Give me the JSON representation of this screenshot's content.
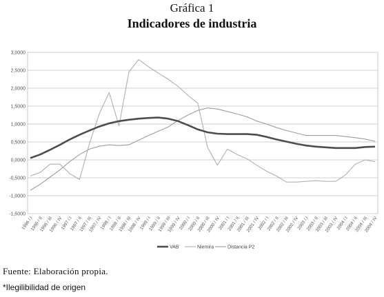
{
  "header": {
    "chart_number": "Gráfica 1",
    "title": "Indicadores de industria"
  },
  "footer": {
    "source": "Fuente: Elaboración propia.",
    "note": "*Ilegilibilidad de origen"
  },
  "chart_data": {
    "type": "line",
    "title": "Indicadores de industria",
    "xlabel": "",
    "ylabel": "",
    "ylim": [
      -1.5,
      3.0
    ],
    "yticks": [
      3.0,
      2.5,
      2.0,
      1.5,
      1.0,
      0.5,
      0.0,
      -0.5,
      -1.0,
      -1.5
    ],
    "ytick_labels": [
      "3,0000",
      "2,5000",
      "2,0000",
      "1,5000",
      "1,0000",
      "0,5000",
      "0,0000",
      "-0,5000",
      "-1,0000",
      "-1,5000"
    ],
    "grid": true,
    "legend_position": "bottom",
    "categories": [
      "1996 / I",
      "1996 / II",
      "1996 / III",
      "1996 / IV",
      "1997 / I",
      "1997 / II",
      "1997 / III",
      "1997 / IV",
      "1998 / I",
      "1998 / II",
      "1998 / III",
      "1998 / IV",
      "1999 / I",
      "1999 / II",
      "1999 / III",
      "1999 / IV",
      "2000 / I",
      "2000 / II",
      "2000 / III",
      "2000 / IV",
      "2001 / I",
      "2001 / II",
      "2001 / III",
      "2001 / IV",
      "2002 / I",
      "2002 / II",
      "2002 / III",
      "2002 / IV",
      "2003 / I",
      "2003 / II",
      "2003 / III",
      "2003 / IV",
      "2004 / I",
      "2004 / II",
      "2004 / III",
      "2004 / IV"
    ],
    "series": [
      {
        "name": "VAB",
        "color": "#4d4d4d",
        "width": 2.6,
        "values": [
          0.05,
          0.15,
          0.28,
          0.42,
          0.57,
          0.7,
          0.82,
          0.93,
          1.02,
          1.08,
          1.12,
          1.15,
          1.17,
          1.18,
          1.15,
          1.08,
          0.97,
          0.85,
          0.77,
          0.73,
          0.72,
          0.72,
          0.72,
          0.7,
          0.64,
          0.57,
          0.51,
          0.45,
          0.4,
          0.37,
          0.35,
          0.33,
          0.33,
          0.33,
          0.36,
          0.37
        ]
      },
      {
        "name": "Niemira",
        "color": "#b0b0b0",
        "width": 1.1,
        "values": [
          -0.45,
          -0.35,
          -0.12,
          -0.12,
          -0.38,
          -0.55,
          0.45,
          1.28,
          1.88,
          0.95,
          2.45,
          2.8,
          2.6,
          2.42,
          2.25,
          2.05,
          1.8,
          1.58,
          0.35,
          -0.15,
          0.3,
          0.15,
          0.03,
          -0.15,
          -0.32,
          -0.45,
          -0.62,
          -0.62,
          -0.6,
          -0.58,
          -0.6,
          -0.6,
          -0.42,
          -0.12,
          0.0,
          -0.05
        ]
      },
      {
        "name": "Distancia P2",
        "color": "#9c9c9c",
        "width": 1.1,
        "values": [
          -0.85,
          -0.68,
          -0.48,
          -0.28,
          -0.05,
          0.15,
          0.3,
          0.38,
          0.42,
          0.4,
          0.42,
          0.55,
          0.68,
          0.8,
          0.92,
          1.1,
          1.25,
          1.38,
          1.45,
          1.42,
          1.35,
          1.28,
          1.2,
          1.08,
          1.0,
          0.9,
          0.82,
          0.75,
          0.68,
          0.68,
          0.68,
          0.68,
          0.65,
          0.62,
          0.58,
          0.52
        ]
      }
    ]
  }
}
